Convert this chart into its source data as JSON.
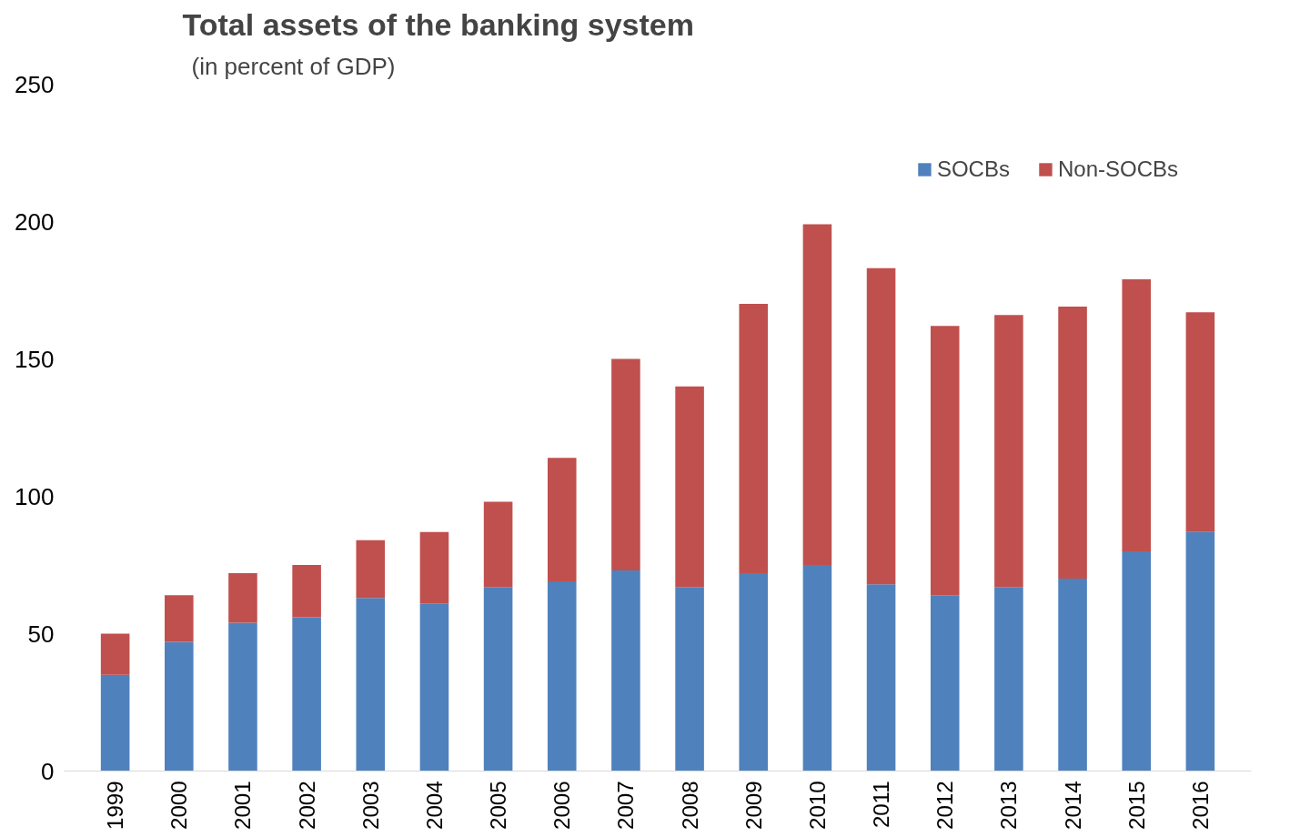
{
  "chart_data": {
    "type": "bar",
    "stacked": true,
    "title": "Total assets of the banking system",
    "subtitle": "(in percent of GDP)",
    "categories": [
      "1999",
      "2000",
      "2001",
      "2002",
      "2003",
      "2004",
      "2005",
      "2006",
      "2007",
      "2008",
      "2009",
      "2010",
      "2011",
      "2012",
      "2013",
      "2014",
      "2015",
      "2016"
    ],
    "series": [
      {
        "name": "SOCBs",
        "color": "#4f81bd",
        "values": [
          35,
          47,
          54,
          56,
          63,
          61,
          67,
          69,
          73,
          67,
          72,
          75,
          68,
          64,
          67,
          70,
          80,
          87
        ]
      },
      {
        "name": "Non-SOCBs",
        "color": "#c0504d",
        "values": [
          15,
          17,
          18,
          19,
          21,
          26,
          31,
          45,
          77,
          73,
          98,
          124,
          115,
          98,
          99,
          99,
          99,
          80
        ]
      }
    ],
    "ylim": [
      0,
      250
    ],
    "yticks": [
      0,
      50,
      100,
      150,
      200,
      250
    ],
    "grid": false,
    "legend": "top right"
  }
}
